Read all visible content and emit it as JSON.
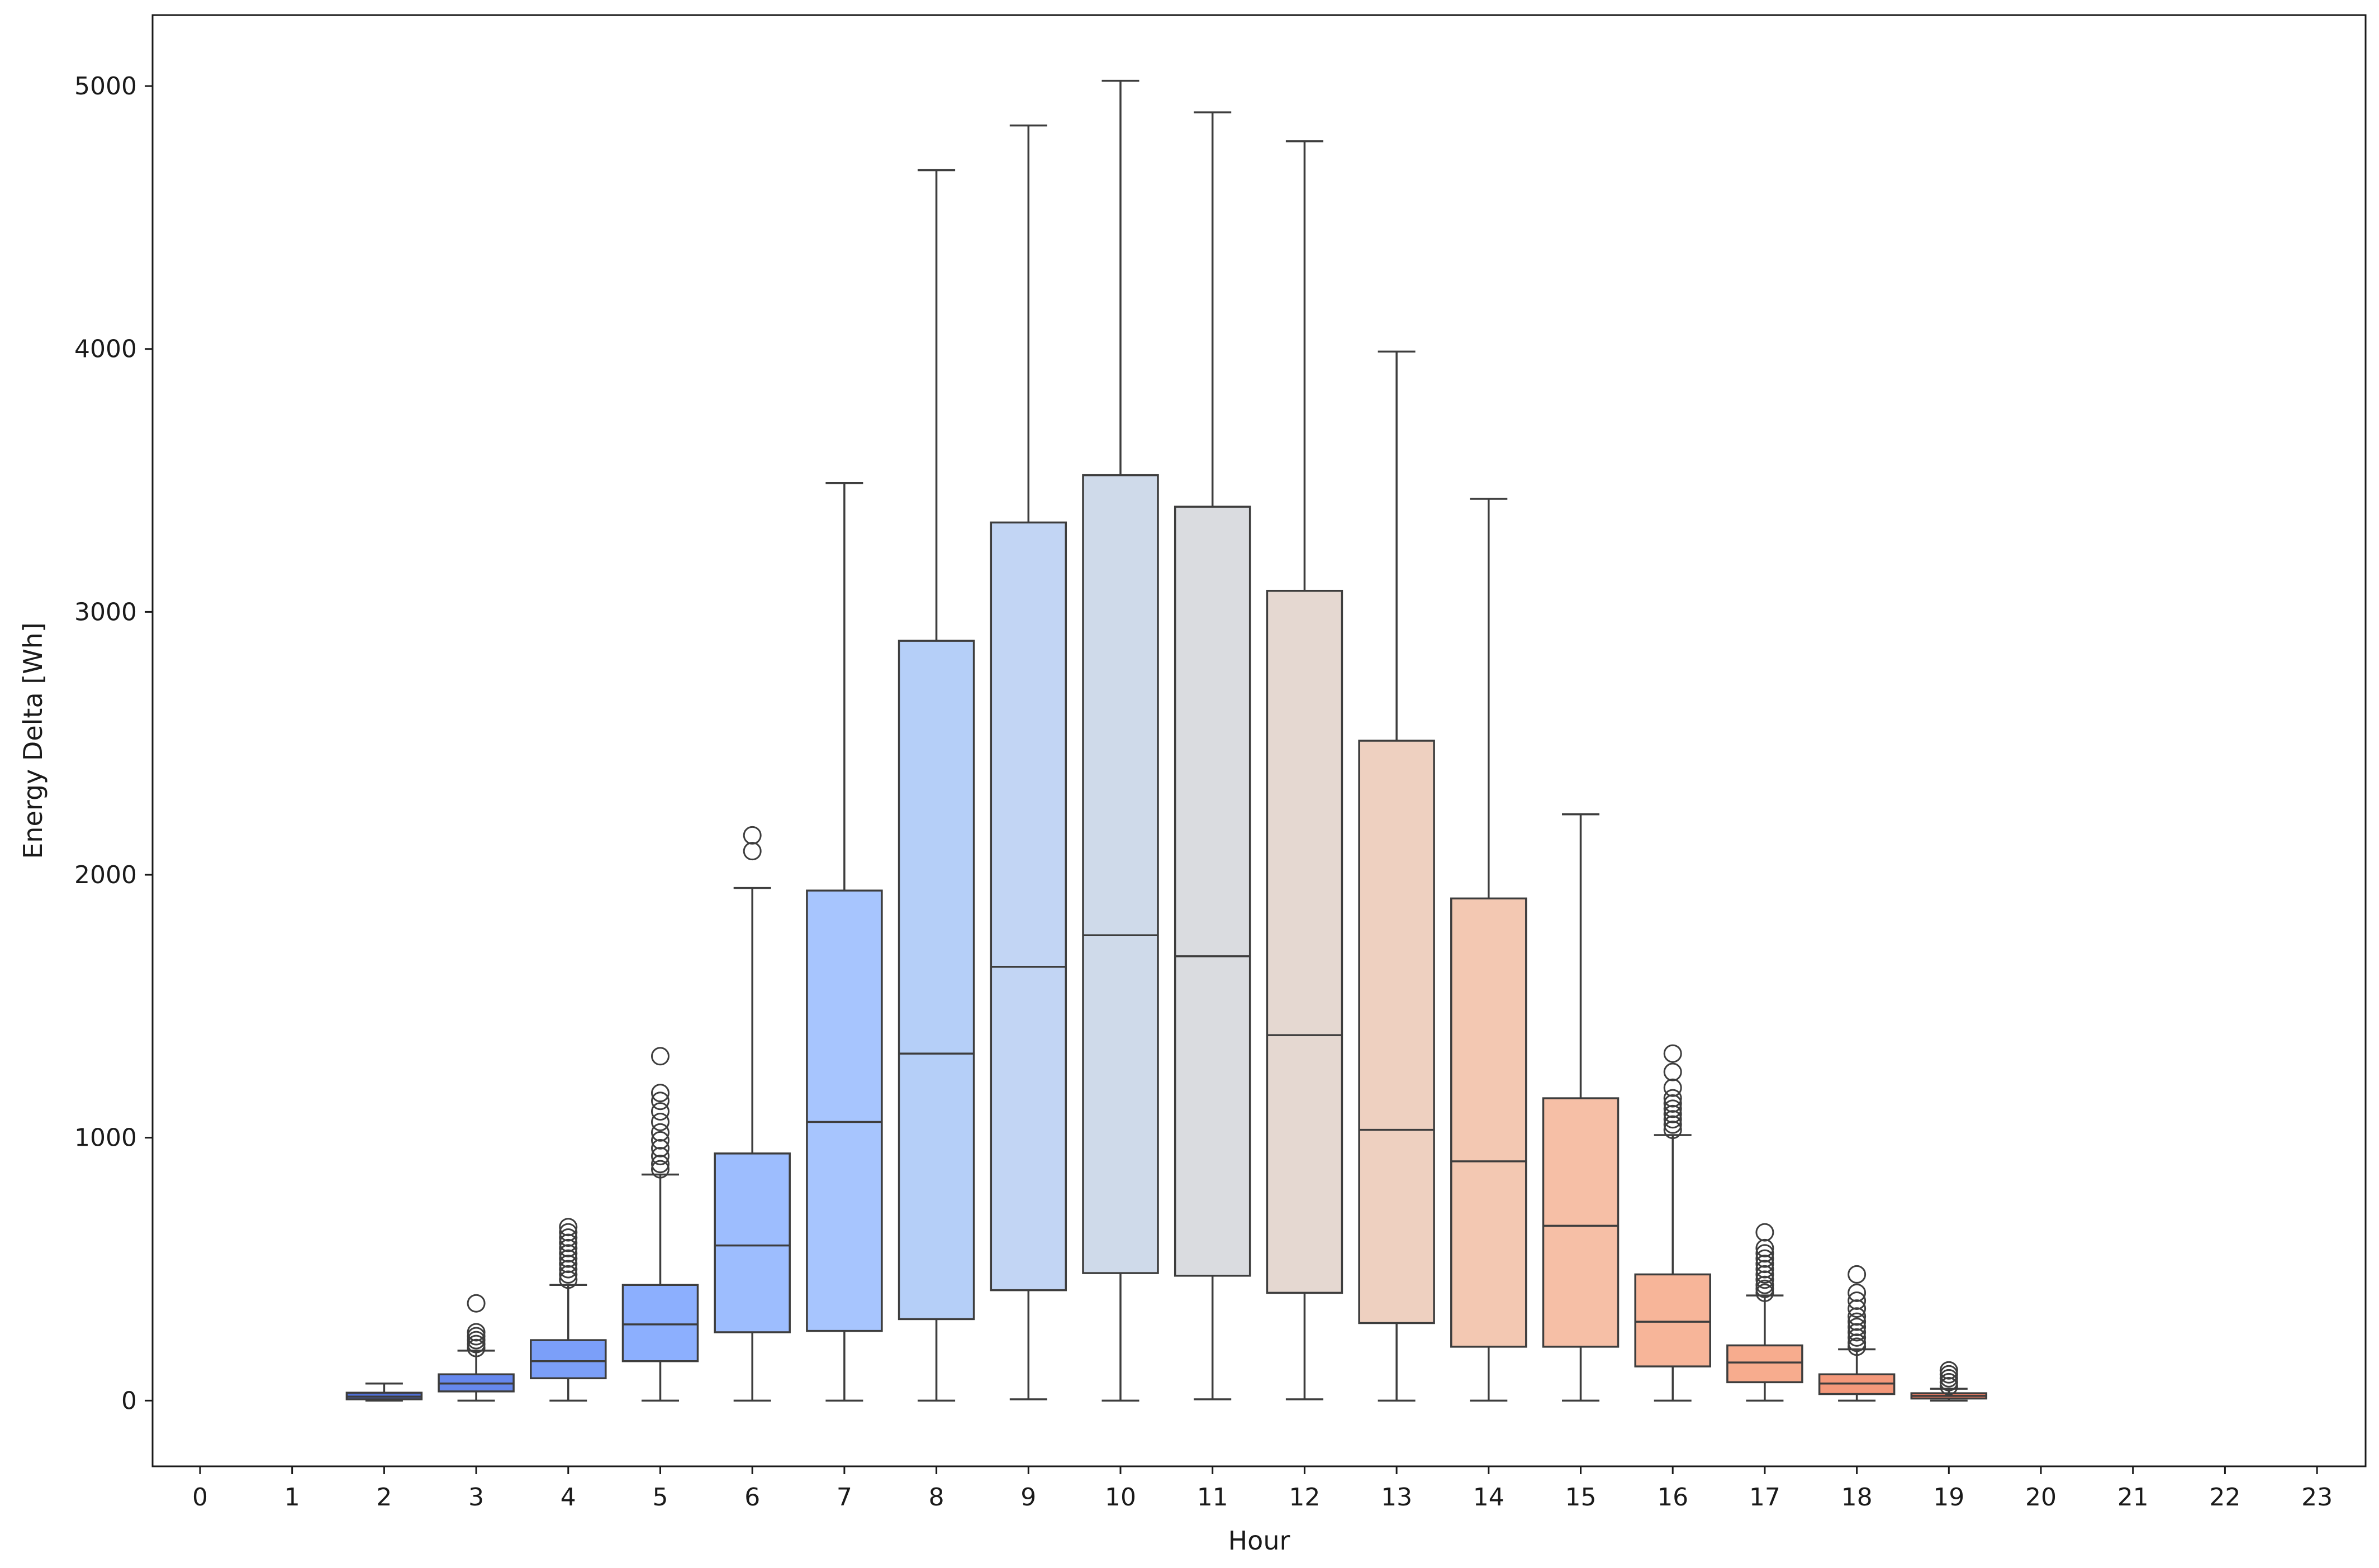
{
  "chart_data": {
    "type": "box",
    "title": "",
    "xlabel": "Hour",
    "ylabel": "Energy Delta [Wh]",
    "ylim": [
      -250,
      5270
    ],
    "yticks": [
      0,
      1000,
      2000,
      3000,
      4000,
      5000
    ],
    "categories": [
      "0",
      "1",
      "2",
      "3",
      "4",
      "5",
      "6",
      "7",
      "8",
      "9",
      "10",
      "11",
      "12",
      "13",
      "14",
      "15",
      "16",
      "17",
      "18",
      "19",
      "20",
      "21",
      "22",
      "23"
    ],
    "boxes": [
      {
        "hour": "2",
        "color": "#4f6fd6",
        "whislo": 0,
        "q1": 5,
        "med": 15,
        "q3": 30,
        "whishi": 65,
        "fliers": []
      },
      {
        "hour": "3",
        "color": "#6688ee",
        "whislo": 0,
        "q1": 35,
        "med": 65,
        "q3": 100,
        "whishi": 190,
        "fliers": [
          200,
          215,
          230,
          245,
          260,
          370
        ]
      },
      {
        "hour": "4",
        "color": "#7b9ff9",
        "whislo": 0,
        "q1": 85,
        "med": 150,
        "q3": 230,
        "whishi": 440,
        "fliers": [
          460,
          480,
          500,
          520,
          540,
          560,
          580,
          600,
          620,
          640,
          660
        ]
      },
      {
        "hour": "5",
        "color": "#8caffe",
        "whislo": 0,
        "q1": 150,
        "med": 290,
        "q3": 440,
        "whishi": 860,
        "fliers": [
          880,
          900,
          930,
          960,
          990,
          1020,
          1060,
          1100,
          1140,
          1170,
          1310
        ]
      },
      {
        "hour": "6",
        "color": "#9dbdfe",
        "whislo": 0,
        "q1": 260,
        "med": 590,
        "q3": 940,
        "whishi": 1950,
        "fliers": [
          2090,
          2150
        ]
      },
      {
        "hour": "7",
        "color": "#a7c5fe",
        "whislo": 0,
        "q1": 265,
        "med": 1060,
        "q3": 1940,
        "whishi": 3490,
        "fliers": []
      },
      {
        "hour": "8",
        "color": "#b5cff8",
        "whislo": 0,
        "q1": 310,
        "med": 1320,
        "q3": 2890,
        "whishi": 4680,
        "fliers": []
      },
      {
        "hour": "9",
        "color": "#c2d5f4",
        "whislo": 5,
        "q1": 420,
        "med": 1650,
        "q3": 3340,
        "whishi": 4850,
        "fliers": []
      },
      {
        "hour": "10",
        "color": "#cfdaea",
        "whislo": 0,
        "q1": 485,
        "med": 1770,
        "q3": 3520,
        "whishi": 5020,
        "fliers": []
      },
      {
        "hour": "11",
        "color": "#dadce0",
        "whislo": 5,
        "q1": 475,
        "med": 1690,
        "q3": 3400,
        "whishi": 4900,
        "fliers": []
      },
      {
        "hour": "12",
        "color": "#e5d8d1",
        "whislo": 5,
        "q1": 410,
        "med": 1390,
        "q3": 3080,
        "whishi": 4790,
        "fliers": []
      },
      {
        "hour": "13",
        "color": "#eed0c0",
        "whislo": 0,
        "q1": 295,
        "med": 1030,
        "q3": 2510,
        "whishi": 3990,
        "fliers": []
      },
      {
        "hour": "14",
        "color": "#f3c8b2",
        "whislo": 0,
        "q1": 205,
        "med": 910,
        "q3": 1910,
        "whishi": 3430,
        "fliers": []
      },
      {
        "hour": "15",
        "color": "#f6bfa6",
        "whislo": 0,
        "q1": 205,
        "med": 665,
        "q3": 1150,
        "whishi": 2230,
        "fliers": []
      },
      {
        "hour": "16",
        "color": "#f7b599",
        "whislo": 0,
        "q1": 130,
        "med": 300,
        "q3": 480,
        "whishi": 1010,
        "fliers": [
          1030,
          1050,
          1070,
          1090,
          1110,
          1130,
          1150,
          1190,
          1250,
          1320
        ]
      },
      {
        "hour": "17",
        "color": "#f7ac8e",
        "whislo": 0,
        "q1": 70,
        "med": 145,
        "q3": 210,
        "whishi": 400,
        "fliers": [
          410,
          425,
          440,
          460,
          480,
          500,
          520,
          540,
          560,
          580,
          640
        ]
      },
      {
        "hour": "18",
        "color": "#f4987a",
        "whislo": 0,
        "q1": 25,
        "med": 65,
        "q3": 100,
        "whishi": 195,
        "fliers": [
          205,
          220,
          240,
          260,
          280,
          300,
          320,
          350,
          380,
          410,
          480
        ]
      },
      {
        "hour": "19",
        "color": "#e67a62",
        "whislo": 0,
        "q1": 8,
        "med": 18,
        "q3": 28,
        "whishi": 45,
        "fliers": [
          55,
          70,
          85,
          100,
          115
        ]
      }
    ]
  }
}
